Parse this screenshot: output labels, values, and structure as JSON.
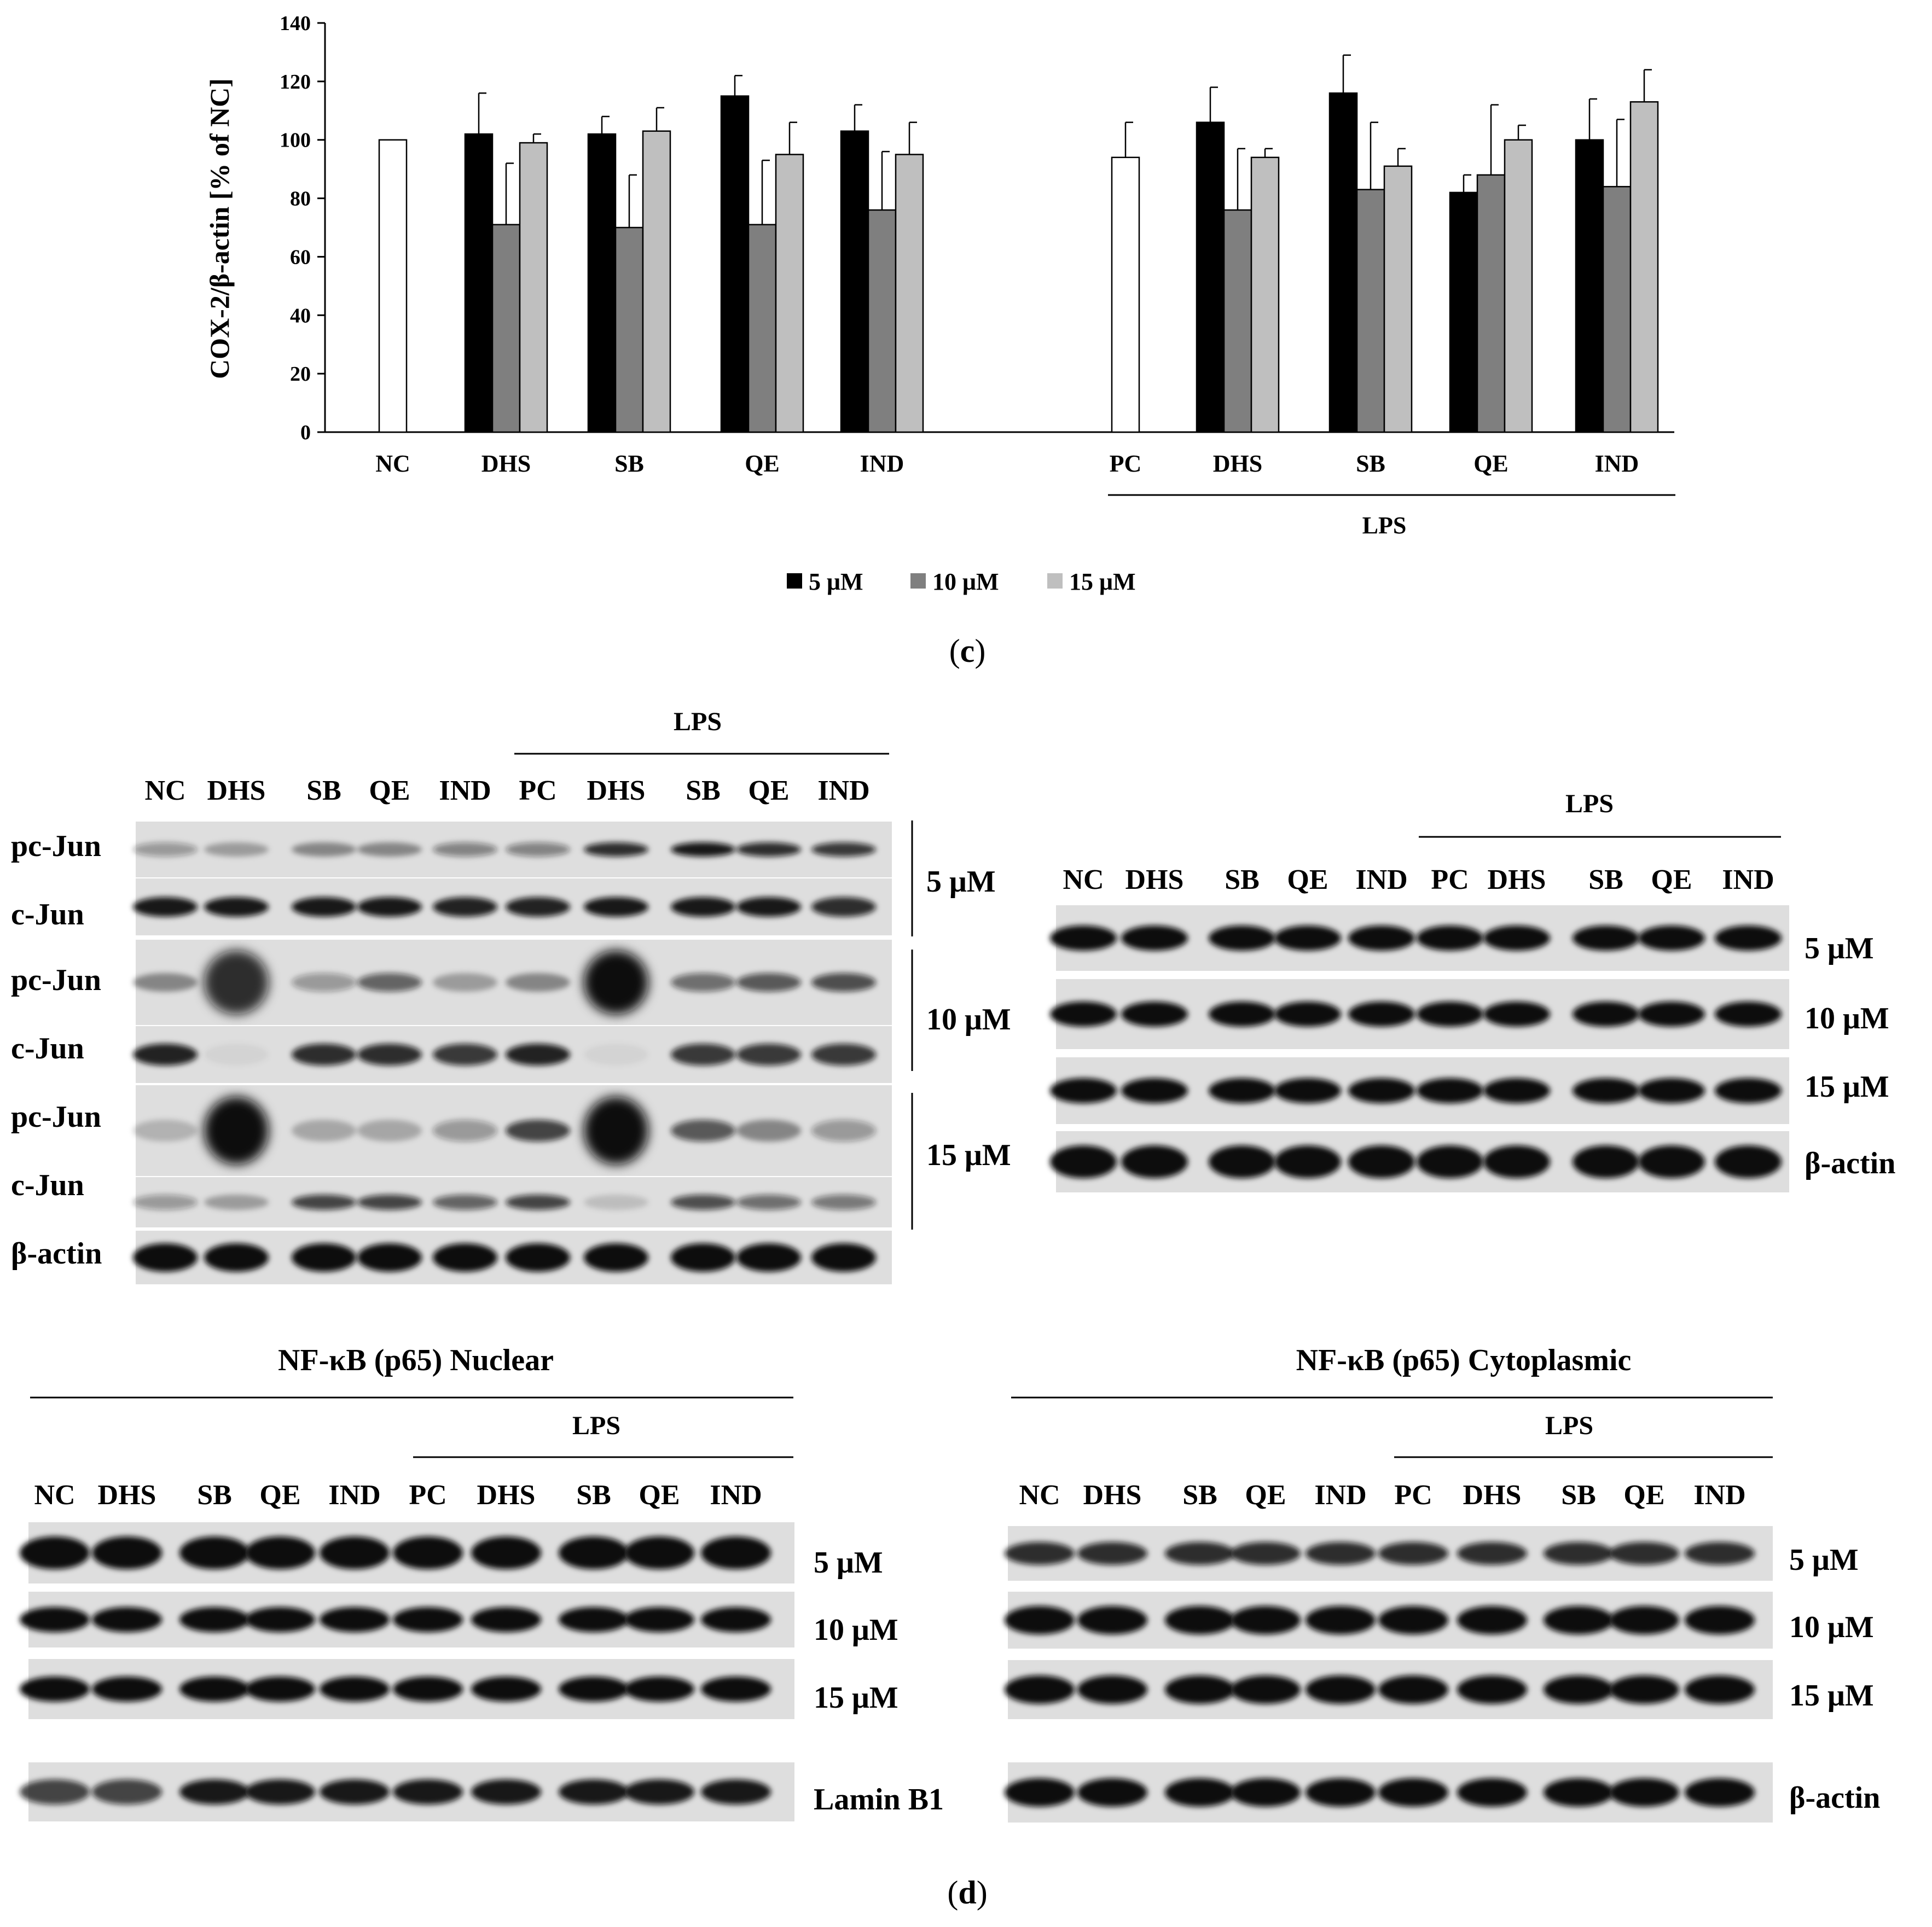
{
  "chart_data": {
    "type": "bar",
    "ylabel": "COX-2/β-actin [% of NC]",
    "ylim": [
      0,
      140
    ],
    "yticks": [
      "0",
      "20",
      "40",
      "60",
      "80",
      "100",
      "120",
      "140"
    ],
    "categories": [
      "NC",
      "DHS",
      "SB",
      "QE",
      "IND",
      "PC",
      "DHS",
      "SB",
      "QE",
      "IND"
    ],
    "group_label": "LPS",
    "control_values": [
      {
        "category": "NC",
        "value": 100,
        "error": 0
      },
      {
        "category": "PC",
        "value": 94,
        "error": 12
      }
    ],
    "series": [
      {
        "name": "5 μM",
        "color": "#000000",
        "values": [
          null,
          102,
          102,
          115,
          103,
          null,
          106,
          116,
          82,
          100
        ],
        "errors": [
          null,
          14,
          6,
          7,
          9,
          null,
          12,
          13,
          6,
          14
        ]
      },
      {
        "name": "10 μM",
        "color": "#7f7f7f",
        "values": [
          null,
          71,
          70,
          71,
          76,
          null,
          76,
          83,
          88,
          84
        ],
        "errors": [
          null,
          21,
          18,
          22,
          20,
          null,
          21,
          23,
          24,
          23
        ]
      },
      {
        "name": "15 μM",
        "color": "#bfbfbf",
        "values": [
          null,
          99,
          103,
          95,
          95,
          null,
          94,
          91,
          100,
          113
        ],
        "errors": [
          null,
          3,
          8,
          11,
          11,
          null,
          3,
          6,
          5,
          11
        ]
      }
    ],
    "legend_position": "bottom",
    "grid": false
  },
  "panel_c_label": "c",
  "panel_d_label": "d",
  "blot_cjun": {
    "lps_label": "LPS",
    "lanes": [
      "NC",
      "DHS",
      "SB",
      "QE",
      "IND",
      "PC",
      "DHS",
      "SB",
      "QE",
      "IND"
    ],
    "row_labels": [
      "pc-Jun",
      "c-Jun",
      "pc-Jun",
      "c-Jun",
      "pc-Jun",
      "c-Jun",
      "β-actin"
    ],
    "dose_labels": [
      "5 μM",
      "10 μM",
      "15 μM"
    ]
  },
  "blot_cox2": {
    "lps_label": "LPS",
    "lanes": [
      "NC",
      "DHS",
      "SB",
      "QE",
      "IND",
      "PC",
      "DHS",
      "SB",
      "QE",
      "IND"
    ],
    "row_labels": [
      "5 μM",
      "10 μM",
      "15 μM",
      "β-actin"
    ]
  },
  "blot_nuclear": {
    "title": "NF-κB (p65) Nuclear",
    "lps_label": "LPS",
    "lanes": [
      "NC",
      "DHS",
      "SB",
      "QE",
      "IND",
      "PC",
      "DHS",
      "SB",
      "QE",
      "IND"
    ],
    "row_labels": [
      "5 μM",
      "10 μM",
      "15 μM",
      "Lamin B1"
    ]
  },
  "blot_cyto": {
    "title": "NF-κB (p65) Cytoplasmic",
    "lps_label": "LPS",
    "lanes": [
      "NC",
      "DHS",
      "SB",
      "QE",
      "IND",
      "PC",
      "DHS",
      "SB",
      "QE",
      "IND"
    ],
    "row_labels": [
      "5 μM",
      "10 μM",
      "15 μM",
      "β-actin"
    ]
  }
}
